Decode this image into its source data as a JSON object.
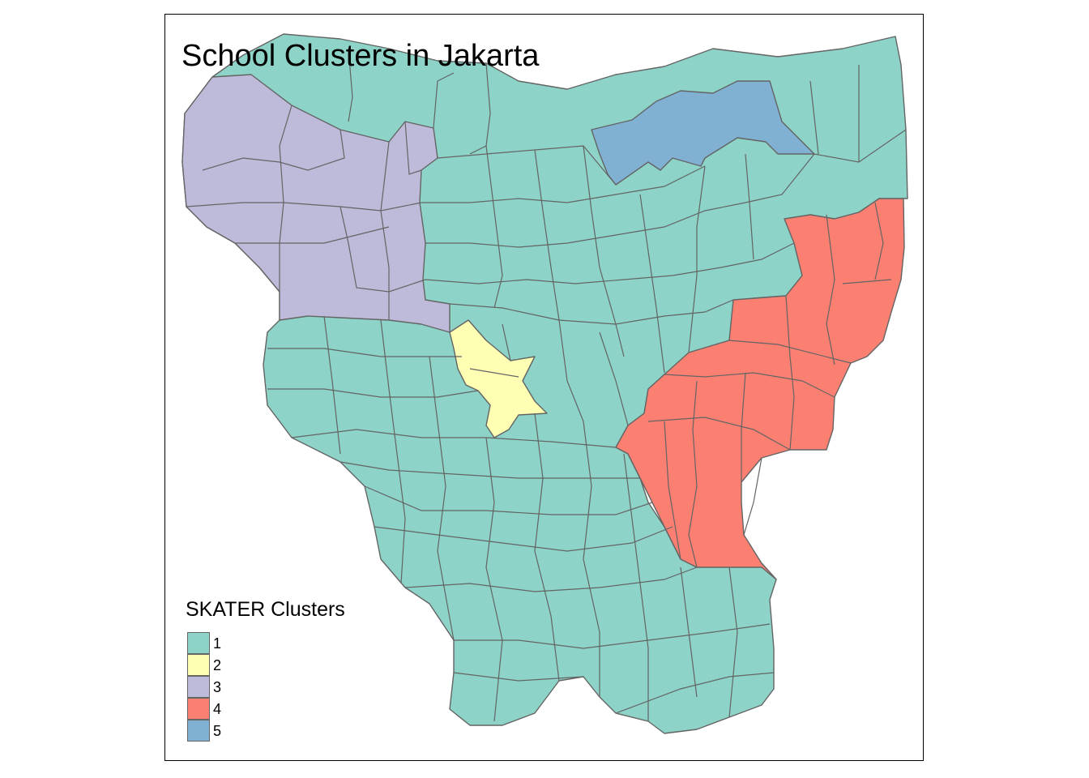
{
  "title": "School Clusters in Jakarta",
  "legend": {
    "title": "SKATER Clusters",
    "items": [
      {
        "label": "1",
        "color": "#8DD3C7"
      },
      {
        "label": "2",
        "color": "#FFFFB3"
      },
      {
        "label": "3",
        "color": "#BEBADA"
      },
      {
        "label": "4",
        "color": "#FB8072"
      },
      {
        "label": "5",
        "color": "#80B1D3"
      }
    ]
  },
  "map": {
    "region": "Jakarta",
    "border_color": "#646464",
    "clusters": [
      {
        "cluster": "1",
        "color": "#8DD3C7",
        "extent": "central, north coast, south"
      },
      {
        "cluster": "2",
        "color": "#FFFFB3",
        "extent": "central-west"
      },
      {
        "cluster": "3",
        "color": "#BEBADA",
        "extent": "west"
      },
      {
        "cluster": "4",
        "color": "#FB8072",
        "extent": "east"
      },
      {
        "cluster": "5",
        "color": "#80B1D3",
        "extent": "north coast"
      }
    ]
  }
}
